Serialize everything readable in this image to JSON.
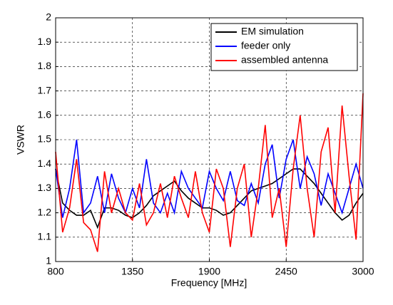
{
  "chart_data": {
    "type": "line",
    "xlabel": "Frequency [MHz]",
    "ylabel": "VSWR",
    "x": [
      800,
      850,
      900,
      950,
      1000,
      1050,
      1100,
      1150,
      1200,
      1250,
      1300,
      1350,
      1400,
      1450,
      1500,
      1550,
      1600,
      1650,
      1700,
      1750,
      1800,
      1850,
      1900,
      1950,
      2000,
      2050,
      2100,
      2150,
      2200,
      2250,
      2300,
      2350,
      2400,
      2450,
      2500,
      2550,
      2600,
      2650,
      2700,
      2750,
      2800,
      2850,
      2900,
      2950,
      3000
    ],
    "series": [
      {
        "name": "EM simulation",
        "color": "#000000",
        "values": [
          1.38,
          1.24,
          1.21,
          1.19,
          1.19,
          1.21,
          1.14,
          1.22,
          1.22,
          1.21,
          1.19,
          1.18,
          1.2,
          1.23,
          1.27,
          1.29,
          1.31,
          1.33,
          1.29,
          1.26,
          1.24,
          1.22,
          1.22,
          1.21,
          1.19,
          1.2,
          1.23,
          1.26,
          1.29,
          1.3,
          1.31,
          1.32,
          1.34,
          1.36,
          1.38,
          1.38,
          1.35,
          1.32,
          1.28,
          1.24,
          1.2,
          1.17,
          1.19,
          1.24,
          1.28
        ]
      },
      {
        "name": "feeder only",
        "color": "#0000ff",
        "values": [
          1.38,
          1.18,
          1.3,
          1.5,
          1.2,
          1.24,
          1.35,
          1.2,
          1.36,
          1.26,
          1.2,
          1.3,
          1.22,
          1.42,
          1.24,
          1.2,
          1.28,
          1.2,
          1.37,
          1.3,
          1.26,
          1.22,
          1.37,
          1.3,
          1.25,
          1.37,
          1.25,
          1.23,
          1.32,
          1.24,
          1.4,
          1.48,
          1.26,
          1.42,
          1.5,
          1.3,
          1.43,
          1.36,
          1.23,
          1.36,
          1.28,
          1.2,
          1.3,
          1.4,
          1.3
        ]
      },
      {
        "name": "assembled antenna",
        "color": "#ff0000",
        "values": [
          1.45,
          1.12,
          1.22,
          1.42,
          1.16,
          1.13,
          1.04,
          1.37,
          1.2,
          1.3,
          1.2,
          1.17,
          1.32,
          1.15,
          1.2,
          1.32,
          1.18,
          1.35,
          1.26,
          1.18,
          1.37,
          1.2,
          1.12,
          1.38,
          1.3,
          1.06,
          1.3,
          1.4,
          1.1,
          1.3,
          1.56,
          1.18,
          1.3,
          1.06,
          1.38,
          1.6,
          1.3,
          1.1,
          1.45,
          1.55,
          1.2,
          1.64,
          1.35,
          1.09,
          1.69
        ]
      }
    ],
    "xlim": [
      800,
      3000
    ],
    "xticks": [
      800,
      1350,
      1900,
      2450,
      3000
    ],
    "ylim": [
      1,
      2
    ],
    "yticks": [
      1,
      1.1,
      1.2,
      1.3,
      1.4,
      1.5,
      1.6,
      1.7,
      1.8,
      1.9,
      2
    ],
    "grid": true,
    "legend": "top-right"
  }
}
